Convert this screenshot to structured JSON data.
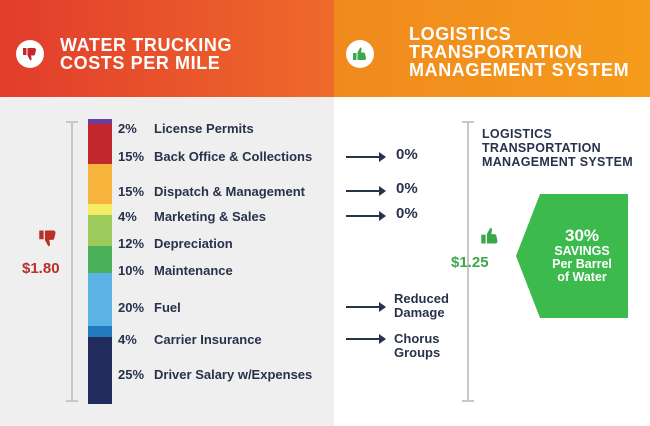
{
  "header": {
    "left_title_lines": [
      "WATER TRUCKING",
      "COSTS PER MILE"
    ],
    "right_title_lines": [
      "LOGISTICS",
      "TRANSPORTATION",
      "MANAGEMENT SYSTEM"
    ]
  },
  "left_total": "$1.80",
  "right_total": "$1.25",
  "system_label_lines": [
    "LOGISTICS",
    "TRANSPORTATION",
    "MANAGEMENT SYSTEM"
  ],
  "savings": {
    "percent": "30%",
    "lines": [
      "SAVINGS",
      "Per Barrel",
      "of Water"
    ]
  },
  "results": {
    "back_office": "0%",
    "dispatch": "0%",
    "marketing": "0%",
    "fuel_lines": [
      "Reduced",
      "Damage"
    ],
    "insurance_lines": [
      "Chorus",
      "Groups"
    ]
  },
  "colors": {
    "header_left": "#e5492b",
    "header_right": "#f08a1e",
    "savings_green": "#3dba4e",
    "negative_red": "#b5312a",
    "text_navy": "#27324b"
  },
  "icons": {
    "header_left": "thumbs-down-icon",
    "header_right": "thumbs-up-icon",
    "total_left": "thumbs-down-icon",
    "total_right": "thumbs-up-icon"
  },
  "chart_data": {
    "type": "bar",
    "stacked": true,
    "categories": [
      "License Permits",
      "Back Office & Collections",
      "Dispatch & Management",
      "Marketing & Sales",
      "Depreciation",
      "Maintenance",
      "Fuel",
      "Carrier Insurance",
      "Driver Salary w/Expenses"
    ],
    "percent_labels": [
      "2%",
      "15%",
      "15%",
      "4%",
      "12%",
      "10%",
      "20%",
      "4%",
      "25%"
    ],
    "values": [
      2,
      15,
      15,
      4,
      12,
      10,
      20,
      4,
      25
    ],
    "segment_colors": [
      "#6d3f9c",
      "#c1272d",
      "#f7b43d",
      "#f5ed66",
      "#9ccb5b",
      "#4bb05a",
      "#5bb3e6",
      "#2379c0",
      "#232c5e"
    ]
  }
}
